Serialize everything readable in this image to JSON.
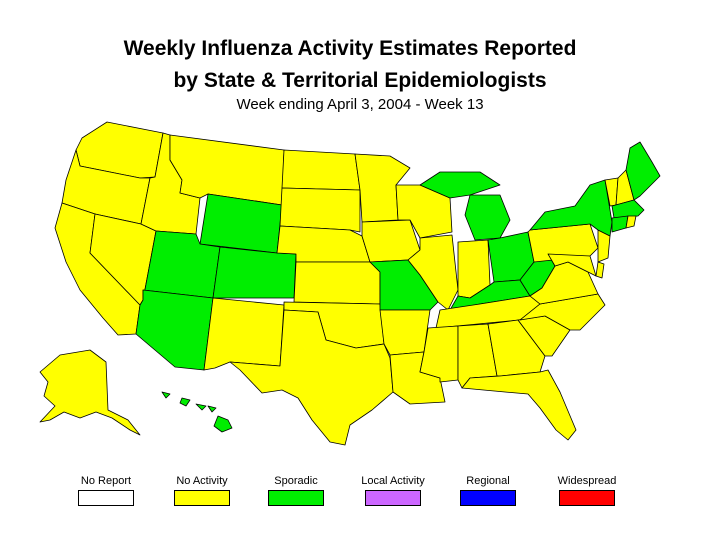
{
  "title_line1": "Weekly Influenza Activity Estimates Reported",
  "title_line2": "by State & Territorial Epidemiologists",
  "subtitle": "Week ending April 3, 2004 - Week 13",
  "colors": {
    "no_report": "#ffffff",
    "no_activity": "#ffff00",
    "sporadic": "#00ee00",
    "local_activity": "#cc66ff",
    "regional": "#0000ff",
    "widespread": "#ff0000"
  },
  "legend": [
    {
      "label": "No Report",
      "color": "#ffffff"
    },
    {
      "label": "No Activity",
      "color": "#ffff00"
    },
    {
      "label": "Sporadic",
      "color": "#00ee00"
    },
    {
      "label": "Local Activity",
      "color": "#cc66ff"
    },
    {
      "label": "Regional",
      "color": "#0000ff"
    },
    {
      "label": "Widespread",
      "color": "#ff0000"
    }
  ],
  "sporadic_states": [
    "Wyoming",
    "Utah",
    "Colorado",
    "Arizona",
    "Missouri",
    "Kentucky",
    "West Virginia",
    "Ohio",
    "Michigan",
    "New York",
    "Maine",
    "Massachusetts",
    "Connecticut",
    "Hawaii"
  ],
  "no_activity_states": [
    "Washington",
    "Oregon",
    "California",
    "Nevada",
    "Idaho",
    "Montana",
    "North Dakota",
    "South Dakota",
    "Nebraska",
    "Kansas",
    "Oklahoma",
    "Texas",
    "New Mexico",
    "Minnesota",
    "Iowa",
    "Wisconsin",
    "Illinois",
    "Indiana",
    "Arkansas",
    "Louisiana",
    "Mississippi",
    "Alabama",
    "Tennessee",
    "Georgia",
    "Florida",
    "South Carolina",
    "North Carolina",
    "Virginia",
    "Maryland",
    "Delaware",
    "New Jersey",
    "Pennsylvania",
    "Vermont",
    "New Hampshire",
    "Rhode Island",
    "Alaska"
  ]
}
